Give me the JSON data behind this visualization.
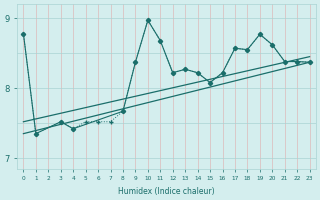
{
  "xlabel": "Humidex (Indice chaleur)",
  "bg_color": "#d4eeee",
  "line_color": "#1a6e6a",
  "xlim": [
    -0.5,
    23.5
  ],
  "ylim": [
    6.85,
    9.2
  ],
  "yticks": [
    7,
    8,
    9
  ],
  "xticks": [
    0,
    1,
    2,
    3,
    4,
    5,
    6,
    7,
    8,
    9,
    10,
    11,
    12,
    13,
    14,
    15,
    16,
    17,
    18,
    19,
    20,
    21,
    22,
    23
  ],
  "hgrid_y": [
    7.0,
    7.5,
    8.0,
    8.5,
    9.0
  ],
  "grid_color": "#aad4d4",
  "vgrid_color": "#ddbaba",
  "dotted_x": [
    0,
    1,
    3,
    4,
    5,
    6,
    7,
    8,
    9,
    10,
    11,
    12,
    13,
    14,
    15,
    16,
    17,
    18,
    19,
    20,
    21,
    22,
    23
  ],
  "dotted_y": [
    8.78,
    7.35,
    7.52,
    7.42,
    7.52,
    7.52,
    7.52,
    7.67,
    8.37,
    8.97,
    8.68,
    8.22,
    8.27,
    8.22,
    8.08,
    8.22,
    8.57,
    8.55,
    8.77,
    8.62,
    8.38,
    8.38,
    8.37
  ],
  "solid_x": [
    0,
    1,
    3,
    4,
    8,
    9,
    10,
    11,
    12,
    13,
    14,
    15,
    16,
    17,
    18,
    19,
    20,
    21,
    22,
    23
  ],
  "solid_y": [
    8.78,
    7.35,
    7.52,
    7.42,
    7.67,
    8.37,
    8.97,
    8.68,
    8.22,
    8.27,
    8.22,
    8.08,
    8.22,
    8.57,
    8.55,
    8.77,
    8.62,
    8.38,
    8.38,
    8.37
  ],
  "trend_x": [
    0,
    23
  ],
  "trend_y": [
    7.52,
    8.45
  ]
}
